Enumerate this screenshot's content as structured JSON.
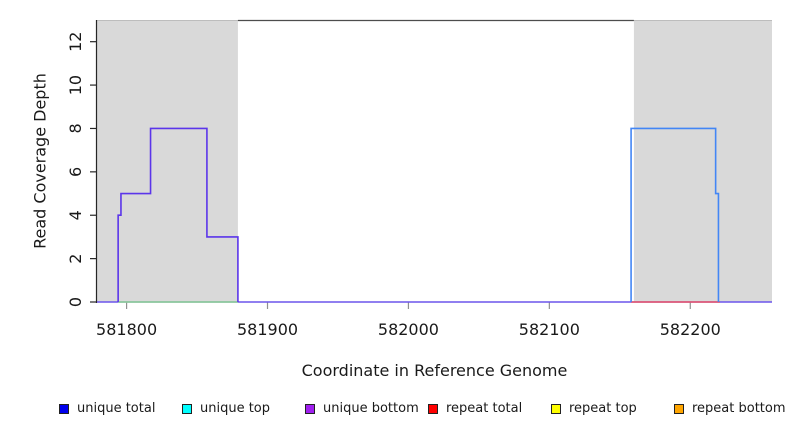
{
  "chart_data": {
    "type": "line",
    "variant": "step-coverage-plot",
    "title": "",
    "xlabel": "Coordinate in Reference Genome",
    "ylabel": "Read Coverage Depth",
    "xlim": [
      581779,
      582258
    ],
    "ylim": [
      0,
      13
    ],
    "x_ticks": [
      581800,
      581900,
      582000,
      582100,
      582200
    ],
    "y_ticks": [
      0,
      2,
      4,
      6,
      8,
      10,
      12
    ],
    "grid": false,
    "colors": {
      "shaded_region": "#d9d9d9",
      "region_top_edge": "#bdbdbd",
      "top_segment": "#4d4d4d",
      "y_axis": "#262626",
      "x_tick": "#909090",
      "text": "#1a1a1a"
    },
    "shaded_regions": [
      {
        "name": "left-highlight-region",
        "x0": 581779,
        "x1": 581879
      },
      {
        "name": "right-highlight-region",
        "x0": 582160,
        "x1": 582258
      }
    ],
    "top_segment": {
      "x0": 581879,
      "x1": 582160,
      "y": 13
    },
    "series": [
      {
        "name": "zero-baseline",
        "color": "#6c55ec",
        "width": 1.4,
        "points": [
          [
            581779,
            0
          ],
          [
            582258,
            0
          ]
        ]
      },
      {
        "name": "green-zero-overlay",
        "color": "#90d990",
        "width": 1.4,
        "points": [
          [
            581794,
            0
          ],
          [
            581879,
            0
          ]
        ]
      },
      {
        "name": "red-zero-overlay",
        "color": "#ed5565",
        "width": 1.4,
        "points": [
          [
            582158,
            0
          ],
          [
            582221,
            0
          ]
        ]
      },
      {
        "name": "unique-bottom-step",
        "color": "#5b35ea",
        "width": 1.6,
        "points": [
          [
            581794,
            0
          ],
          [
            581794,
            4
          ],
          [
            581796,
            4
          ],
          [
            581796,
            5
          ],
          [
            581817,
            5
          ],
          [
            581817,
            8
          ],
          [
            581857,
            8
          ],
          [
            581857,
            3
          ],
          [
            581879,
            3
          ],
          [
            581879,
            0
          ]
        ]
      },
      {
        "name": "unique-total-step",
        "color": "#4386f5",
        "width": 1.6,
        "points": [
          [
            582158,
            0
          ],
          [
            582158,
            8
          ],
          [
            582218,
            8
          ],
          [
            582218,
            5
          ],
          [
            582220,
            5
          ],
          [
            582220,
            0
          ]
        ]
      }
    ],
    "legend": {
      "position": "bottom",
      "items": [
        {
          "label": "unique total",
          "color": "#0000ee"
        },
        {
          "label": "unique top",
          "color": "#00ffff"
        },
        {
          "label": "unique bottom",
          "color": "#a020f0"
        },
        {
          "label": "repeat total",
          "color": "#ff0000"
        },
        {
          "label": "repeat top",
          "color": "#ffff00"
        },
        {
          "label": "repeat bottom",
          "color": "#ffa500"
        }
      ]
    }
  }
}
